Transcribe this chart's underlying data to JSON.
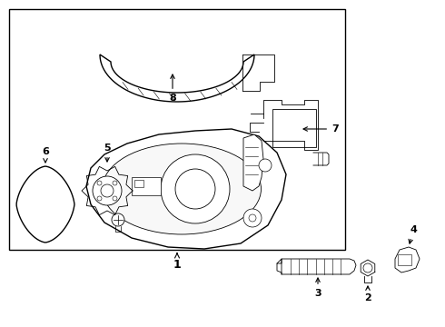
{
  "background_color": "#ffffff",
  "line_color": "#000000",
  "fig_width": 4.9,
  "fig_height": 3.6,
  "dpi": 100
}
